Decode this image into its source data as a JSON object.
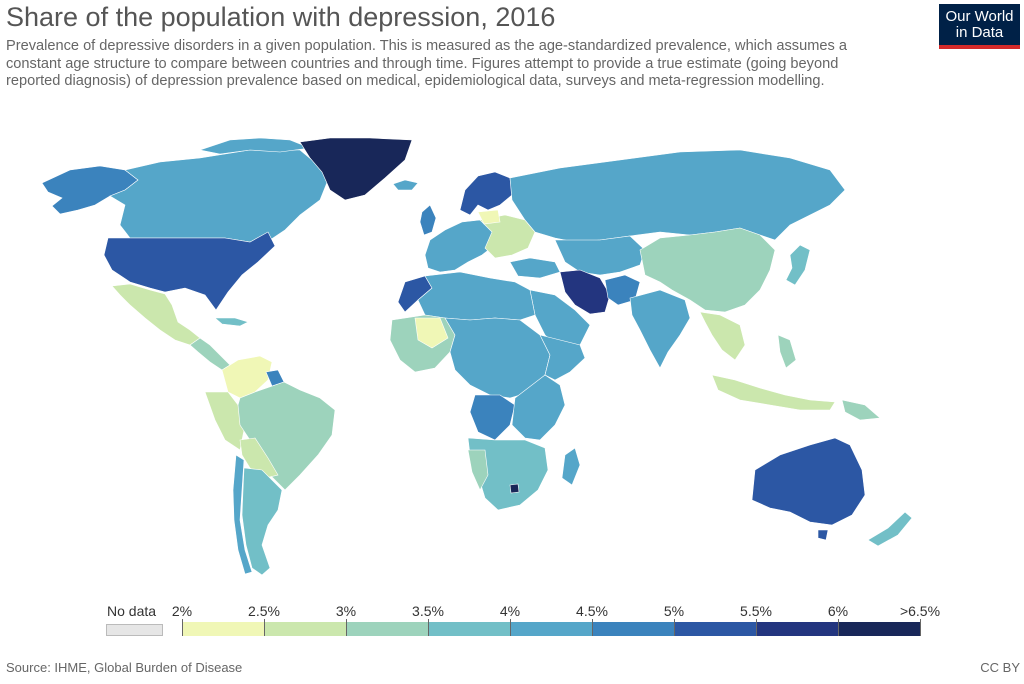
{
  "header": {
    "title": "Share of the population with depression, 2016",
    "subtitle": "Prevalence of depressive disorders in a given population. This is measured as the age-standardized prevalence, which assumes a constant age structure to compare between countries and through time. Figures attempt to provide a true estimate (going beyond reported diagnosis) of depression prevalence based on medical, epidemiological data, surveys and meta-regression modelling."
  },
  "logo": {
    "line1": "Our World",
    "line2": "in Data"
  },
  "legend": {
    "no_data_label": "No data",
    "no_data_color": "#e6e6e6",
    "labels": [
      "2%",
      "2.5%",
      "3%",
      "3.5%",
      "4%",
      "4.5%",
      "5%",
      "5.5%",
      "6%",
      ">6.5%"
    ],
    "colors": [
      "#f0f7b6",
      "#cbe7ad",
      "#9dd3bc",
      "#72bfc7",
      "#55a6c9",
      "#3b83bd",
      "#2c57a4",
      "#23357f",
      "#182759"
    ]
  },
  "footer": {
    "source": "Source: IHME, Global Burden of Disease",
    "license": "CC BY"
  }
}
